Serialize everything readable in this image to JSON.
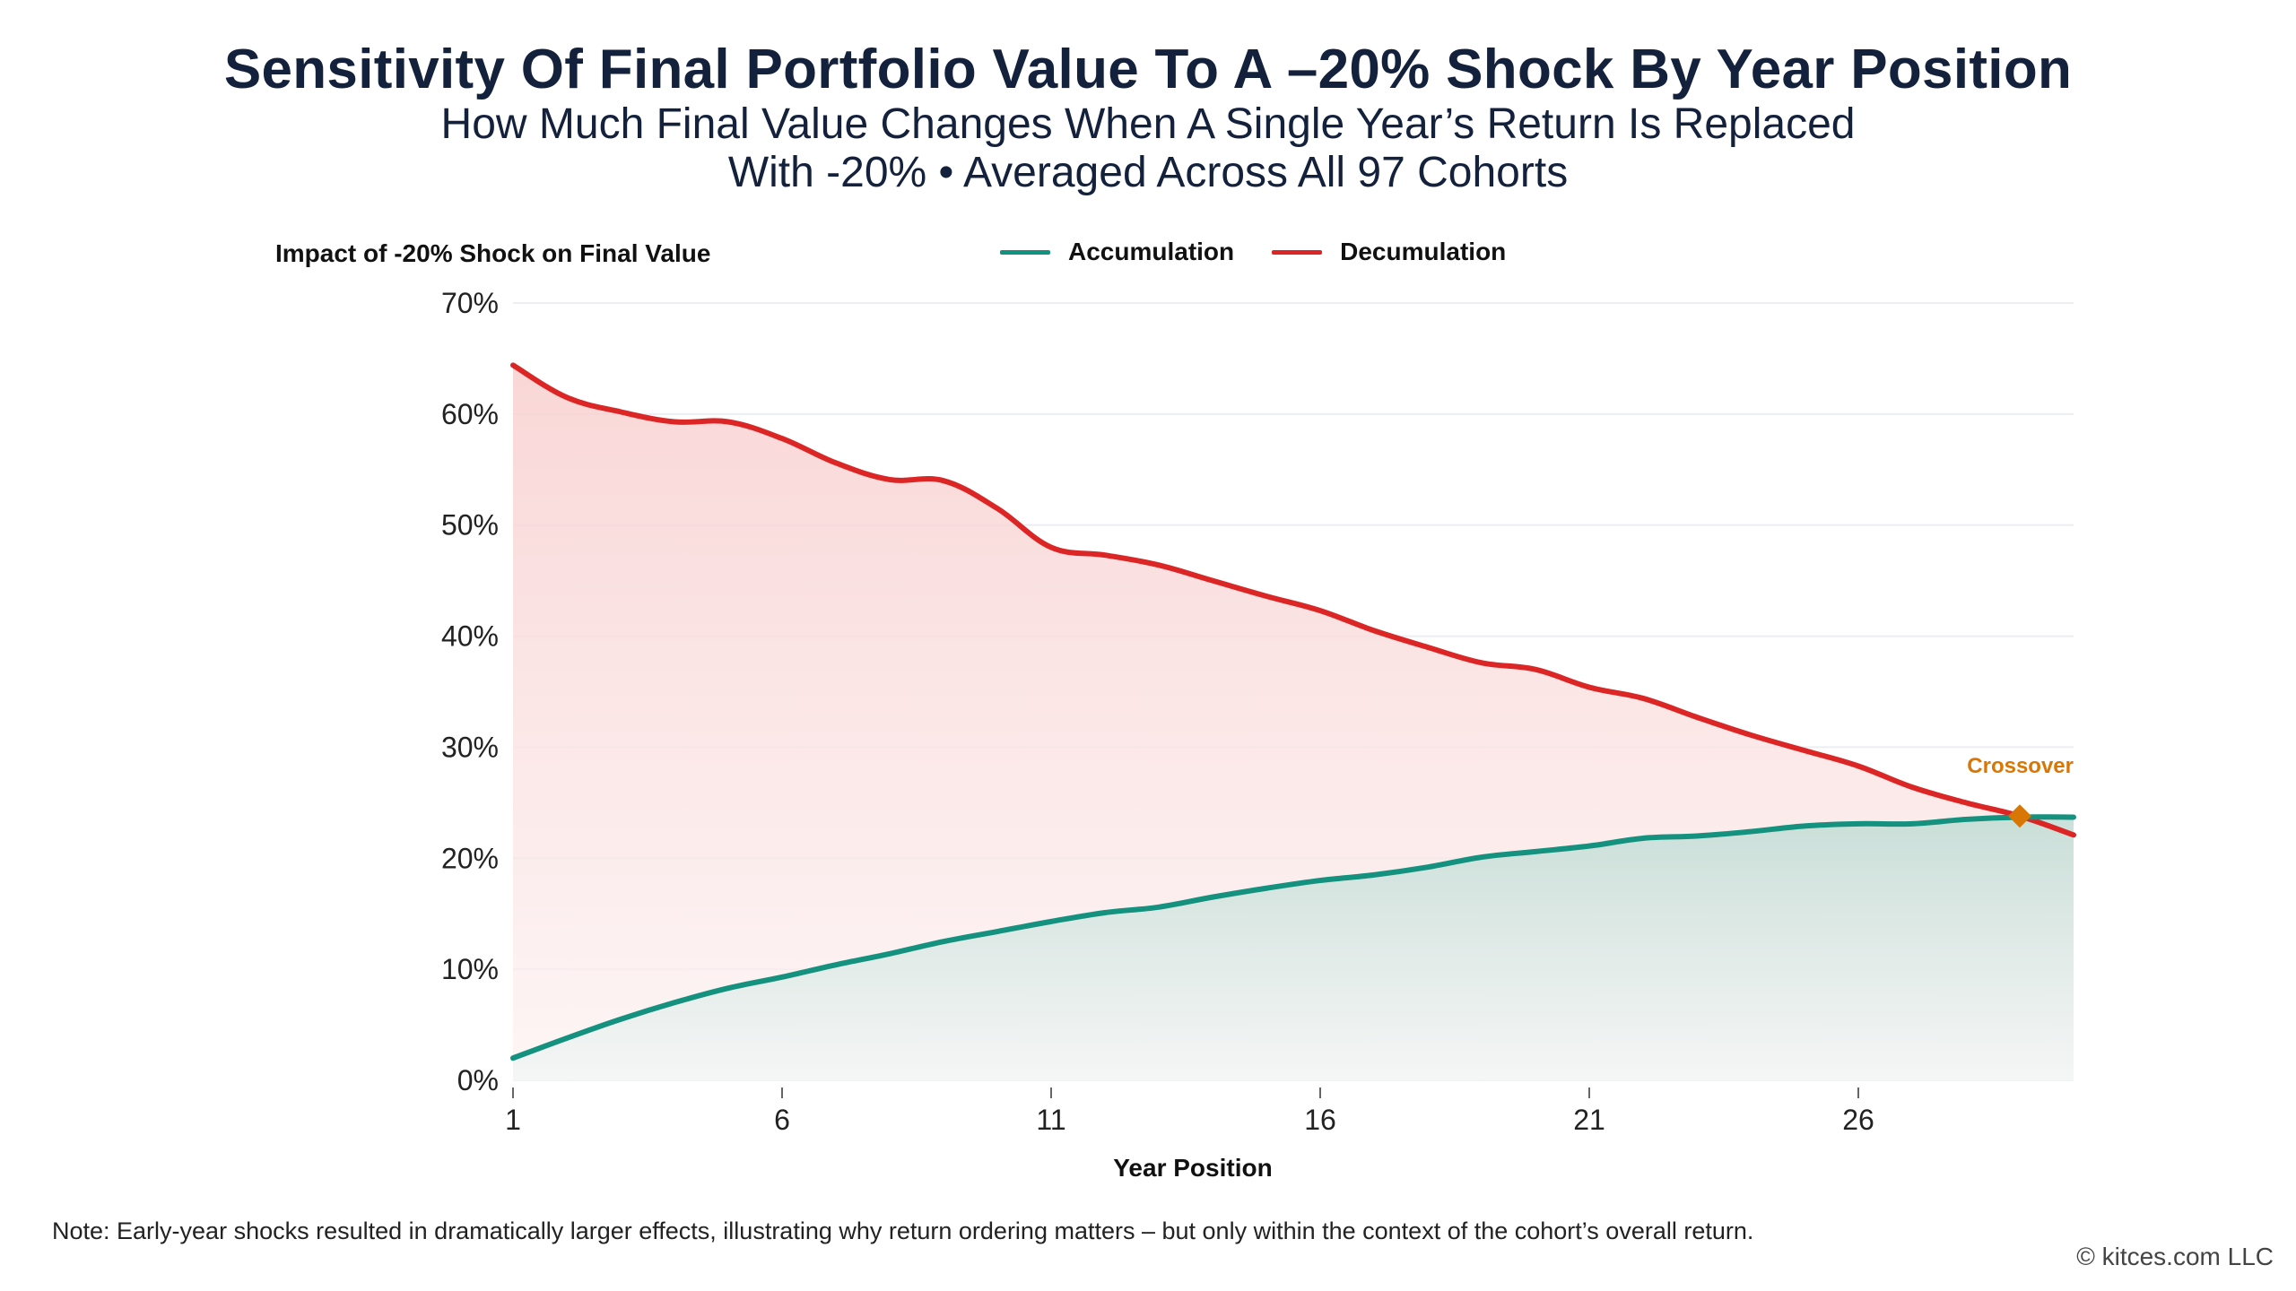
{
  "header": {
    "title": "Sensitivity Of Final Portfolio Value To A –20% Shock By Year Position",
    "subtitle_line1": "How Much Final Value Changes When A Single Year’s Return Is Replaced",
    "subtitle_line2": "With -20% • Averaged Across All 97 Cohorts"
  },
  "legend": {
    "items": [
      {
        "label": "Accumulation",
        "color": "#14917f"
      },
      {
        "label": "Decumulation",
        "color": "#dc2626"
      }
    ]
  },
  "footer": {
    "note": "Note: Early-year shocks resulted in dramatically larger effects, illustrating why return ordering matters – but only within the context of the cohort’s overall return.",
    "copyright": "© kitces.com LLC"
  },
  "chart_data": {
    "type": "area",
    "title": "Sensitivity Of Final Portfolio Value To A –20% Shock By Year Position",
    "ylabel": "Impact of -20% Shock on Final Value",
    "xlabel": "Year Position",
    "x": [
      1,
      2,
      3,
      4,
      5,
      6,
      7,
      8,
      9,
      10,
      11,
      12,
      13,
      14,
      15,
      16,
      17,
      18,
      19,
      20,
      21,
      22,
      23,
      24,
      25,
      26,
      27,
      28,
      29,
      30
    ],
    "xlim": [
      1,
      30
    ],
    "ylim": [
      0,
      70
    ],
    "xticks": [
      1,
      6,
      11,
      16,
      21,
      26
    ],
    "xtick_labels": [
      "1",
      "6",
      "11",
      "16",
      "21",
      "26"
    ],
    "yticks": [
      0,
      10,
      20,
      30,
      40,
      50,
      60,
      70
    ],
    "ytick_labels": [
      "0%",
      "10%",
      "20%",
      "30%",
      "40%",
      "50%",
      "60%",
      "70%"
    ],
    "grid": true,
    "legend_position": "top-center",
    "series": [
      {
        "name": "Accumulation",
        "color": "#14917f",
        "values": [
          2.0,
          3.8,
          5.5,
          7.0,
          8.3,
          9.3,
          10.4,
          11.4,
          12.5,
          13.4,
          14.3,
          15.1,
          15.6,
          16.5,
          17.3,
          18.0,
          18.5,
          19.2,
          20.1,
          20.6,
          21.1,
          21.8,
          22.0,
          22.4,
          22.9,
          23.1,
          23.1,
          23.5,
          23.7,
          23.7
        ]
      },
      {
        "name": "Decumulation",
        "color": "#dc2626",
        "values": [
          64.4,
          61.5,
          60.2,
          59.3,
          59.3,
          57.8,
          55.6,
          54.1,
          54.0,
          51.5,
          48.0,
          47.3,
          46.4,
          45.0,
          43.6,
          42.3,
          40.5,
          39.0,
          37.6,
          37.0,
          35.4,
          34.4,
          32.7,
          31.1,
          29.7,
          28.3,
          26.4,
          25.0,
          23.8,
          22.1
        ]
      }
    ],
    "annotations": [
      {
        "label": "Crossover",
        "x": 29,
        "y": 23.8,
        "marker": "diamond",
        "color": "#d97706"
      }
    ]
  }
}
